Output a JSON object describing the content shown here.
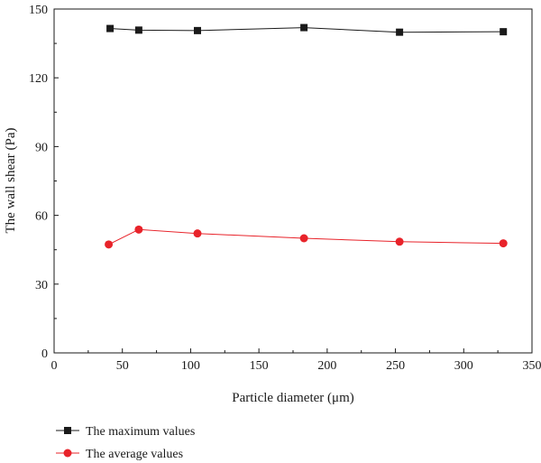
{
  "chart_data": {
    "type": "line",
    "title": "",
    "xlabel": "Particle diameter (μm)",
    "ylabel": "The wall shear (Pa)",
    "xlim": [
      0,
      350
    ],
    "ylim": [
      0,
      150
    ],
    "xticks": [
      0,
      50,
      100,
      150,
      200,
      250,
      300,
      350
    ],
    "yticks": [
      0,
      30,
      60,
      90,
      120,
      150
    ],
    "x_tick_labels": [
      "0",
      "50",
      "100",
      "150",
      "200",
      "250",
      "300",
      "350"
    ],
    "y_tick_labels": [
      "0",
      "30",
      "60",
      "90",
      "120",
      "150"
    ],
    "grid": false,
    "legend_position": "bottom-left, below plot",
    "series": [
      {
        "name": "The maximum values",
        "marker": "square",
        "color": "#1a1a1a",
        "x": [
          41,
          62,
          105,
          183,
          253,
          329
        ],
        "y": [
          141.5,
          140.8,
          140.6,
          141.9,
          139.9,
          140.1
        ]
      },
      {
        "name": "The average values",
        "marker": "circle",
        "color": "#e8232a",
        "x": [
          40,
          62,
          105,
          183,
          253,
          329
        ],
        "y": [
          47.3,
          53.8,
          52.1,
          50.0,
          48.5,
          47.8
        ]
      }
    ]
  }
}
